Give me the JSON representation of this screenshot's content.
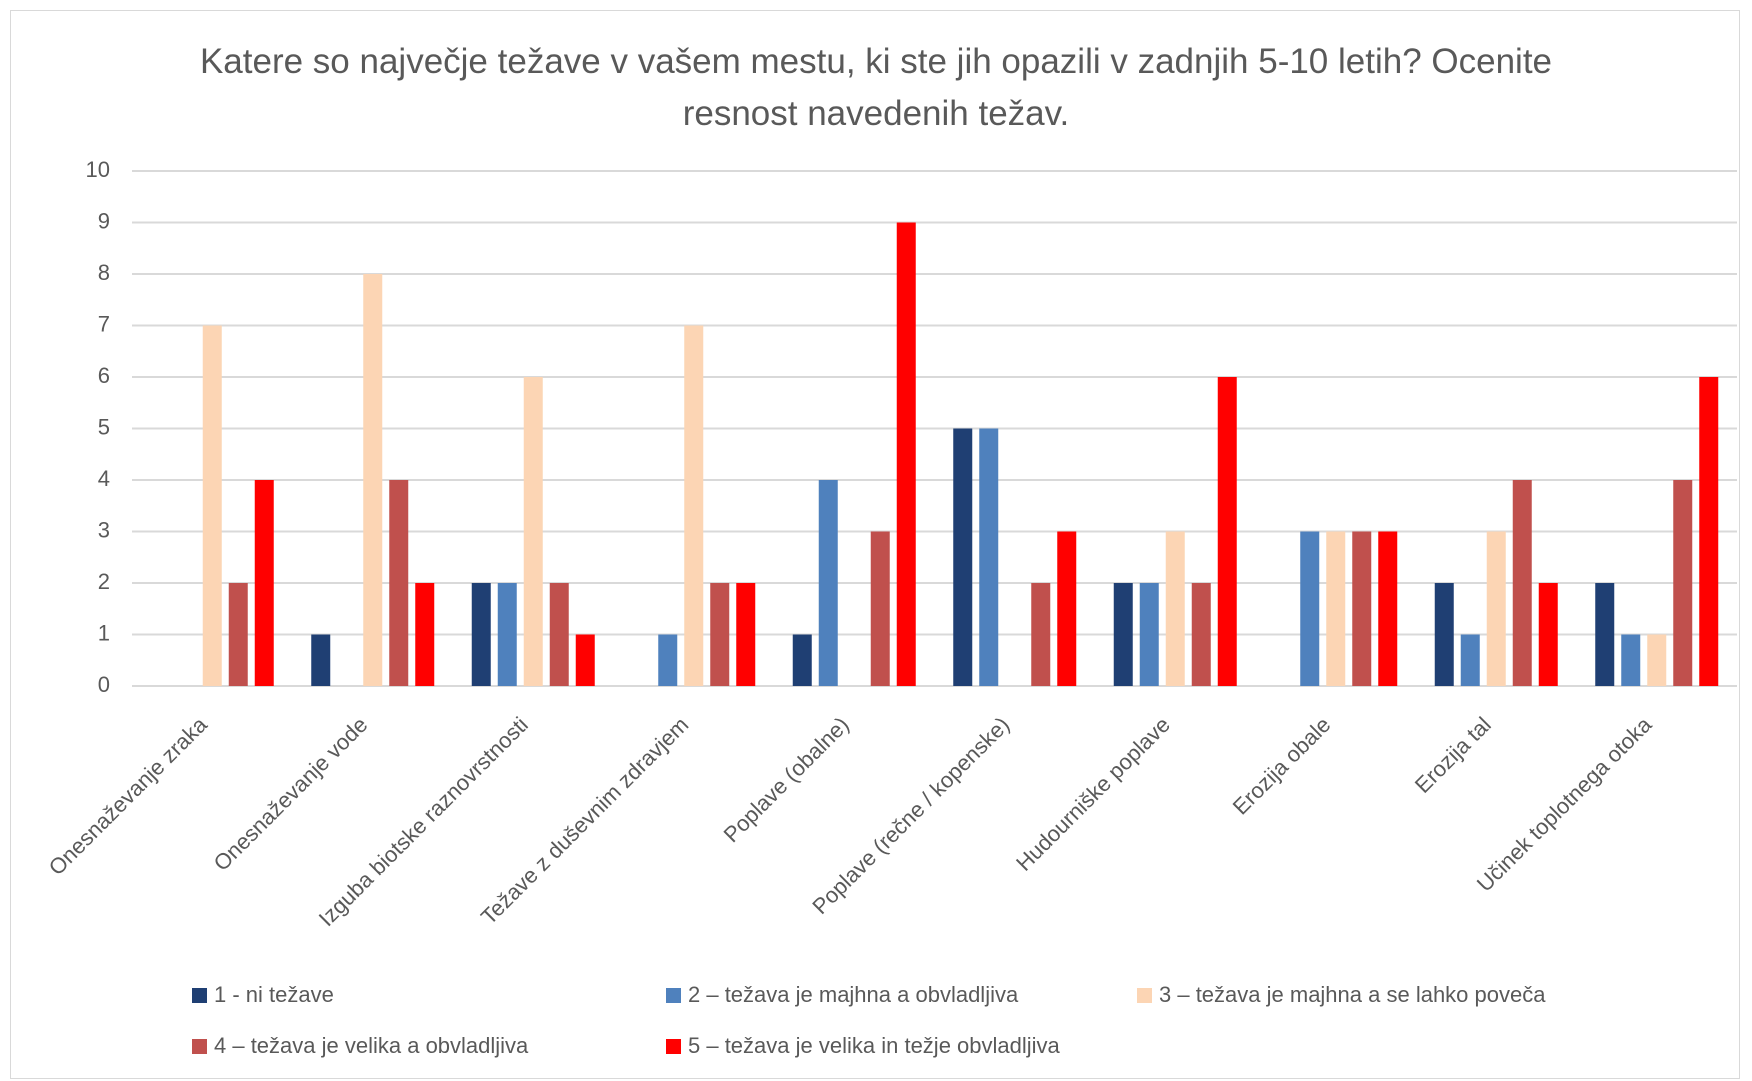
{
  "chart_data": {
    "type": "bar",
    "title": "Katere so največje težave v vašem mestu, ki ste jih opazili v zadnjih 5-10 letih? Ocenite resnost navedenih težav.",
    "categories": [
      "Onesnaževanje zraka",
      "Onesnaževanje vode",
      "Izguba biotske raznovrstnosti",
      "Težave z duševnim zdravjem",
      "Poplave (obalne)",
      "Poplave (rečne / kopenske)",
      "Hudourniške poplave",
      "Erozija obale",
      "Erozija tal",
      "Učinek toplotnega otoka"
    ],
    "series": [
      {
        "name": "1 - ni težave",
        "color": "#1f3f73",
        "values": [
          0,
          1,
          2,
          0,
          1,
          5,
          2,
          0,
          2,
          2
        ]
      },
      {
        "name": "2  – težava je majhna a obvladljiva",
        "color": "#4f81bd",
        "values": [
          0,
          0,
          2,
          1,
          4,
          5,
          2,
          3,
          1,
          1
        ]
      },
      {
        "name": "3 – težava je majhna a se lahko poveča",
        "color": "#fcd5b4",
        "values": [
          7,
          8,
          6,
          7,
          0,
          0,
          3,
          3,
          3,
          1
        ]
      },
      {
        "name": "4  – težava je velika a obvladljiva",
        "color": "#c0504d",
        "values": [
          2,
          4,
          2,
          2,
          3,
          2,
          2,
          3,
          4,
          4
        ]
      },
      {
        "name": "5 – težava je velika in težje obvladljiva",
        "color": "#ff0000",
        "values": [
          4,
          2,
          1,
          2,
          9,
          3,
          6,
          3,
          2,
          6
        ]
      }
    ],
    "ylim": [
      0,
      10
    ],
    "yticks": [
      0,
      1,
      2,
      3,
      4,
      5,
      6,
      7,
      8,
      9,
      10
    ],
    "grid": true
  }
}
